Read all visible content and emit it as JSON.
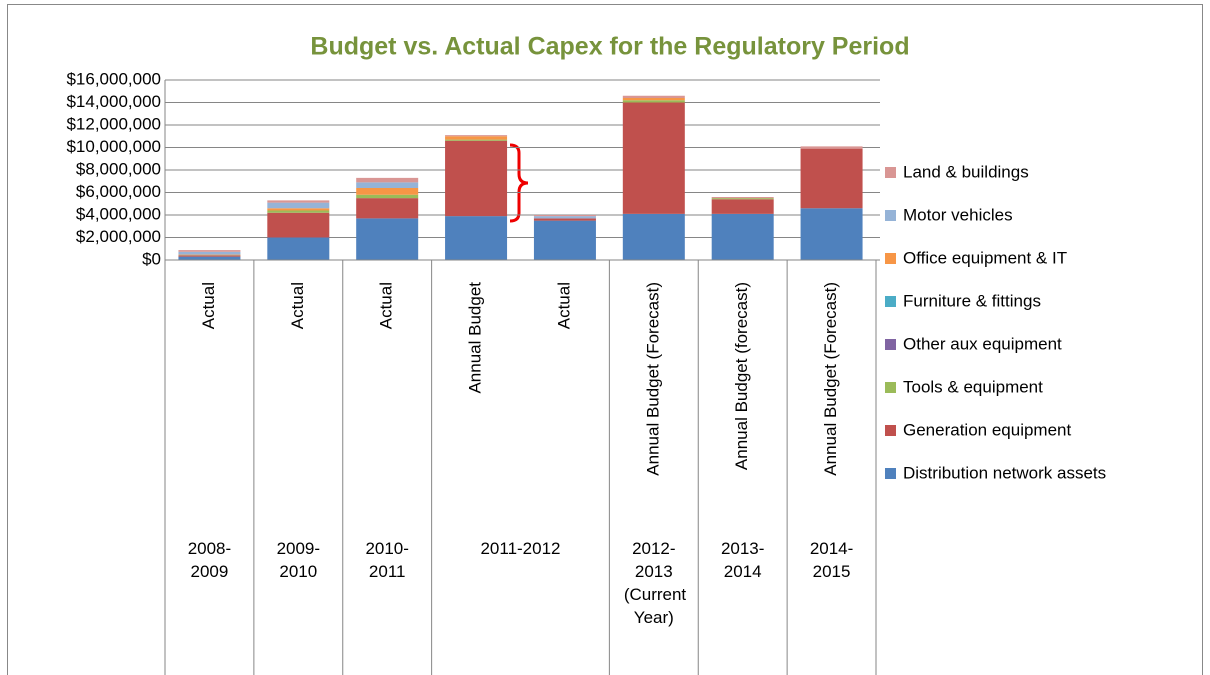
{
  "chart_data": {
    "type": "stacked-bar",
    "title": "Budget vs. Actual Capex for the Regulatory Period",
    "categories": [
      "Actual",
      "Actual",
      "Actual",
      "Annual Budget",
      "Actual",
      "Annual Budget (Forecast)",
      "Annual Budget (forecast)",
      "Annual Budget (Forecast)"
    ],
    "category_groups": [
      "2008-2009",
      "2009-2010",
      "2010-2011",
      "2011-2012",
      null,
      "2012-2013 (Current Year)",
      "2013-2014",
      "2014-2015"
    ],
    "series": [
      {
        "name": "Distribution network assets",
        "color": "#4f81bd",
        "values": [
          300000,
          2000000,
          3700000,
          3900000,
          3500000,
          4100000,
          4100000,
          4600000
        ]
      },
      {
        "name": "Generation equipment",
        "color": "#c0504d",
        "values": [
          100000,
          2200000,
          1800000,
          6700000,
          200000,
          9900000,
          1300000,
          5300000
        ]
      },
      {
        "name": "Tools & equipment",
        "color": "#9bbb59",
        "values": [
          20000,
          200000,
          300000,
          100000,
          0,
          200000,
          100000,
          0
        ]
      },
      {
        "name": "Other aux equipment",
        "color": "#8064a2",
        "values": [
          0,
          0,
          0,
          0,
          0,
          0,
          0,
          0
        ]
      },
      {
        "name": "Furniture & fittings",
        "color": "#4bacc6",
        "values": [
          10000,
          0,
          0,
          0,
          0,
          0,
          0,
          0
        ]
      },
      {
        "name": "Office equipment & IT",
        "color": "#f79646",
        "values": [
          50000,
          200000,
          600000,
          300000,
          0,
          200000,
          0,
          0
        ]
      },
      {
        "name": "Motor vehicles",
        "color": "#95b3d7",
        "values": [
          250000,
          500000,
          500000,
          0,
          200000,
          0,
          0,
          0
        ]
      },
      {
        "name": "Land & buildings",
        "color": "#d99694",
        "values": [
          150000,
          200000,
          400000,
          100000,
          100000,
          200000,
          100000,
          200000
        ]
      }
    ],
    "ylim": [
      0,
      16000000
    ],
    "yticks": [
      {
        "value": 0,
        "label": "$0"
      },
      {
        "value": 2000000,
        "label": "$2,000,000"
      },
      {
        "value": 4000000,
        "label": "$4,000,000"
      },
      {
        "value": 6000000,
        "label": "$6,000,000"
      },
      {
        "value": 8000000,
        "label": "$8,000,000"
      },
      {
        "value": 10000000,
        "label": "$10,000,000"
      },
      {
        "value": 12000000,
        "label": "$12,000,000"
      },
      {
        "value": 14000000,
        "label": "$14,000,000"
      },
      {
        "value": 16000000,
        "label": "$16,000,000"
      }
    ],
    "grid": true,
    "legend": "right"
  }
}
